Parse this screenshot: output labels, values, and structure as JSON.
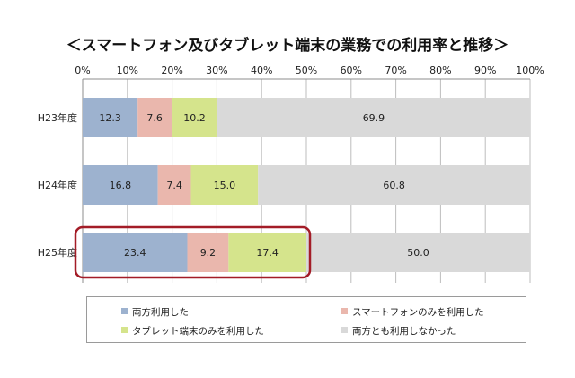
{
  "chart_data": {
    "type": "bar",
    "orientation": "horizontal",
    "stacked": true,
    "title": "＜スマートフォン及びタブレット端末の業務での利用率と推移＞",
    "categories": [
      "H23年度",
      "H24年度",
      "H25年度"
    ],
    "xlim": [
      0,
      100
    ],
    "x_ticks": [
      "0%",
      "10%",
      "20%",
      "30%",
      "40%",
      "50%",
      "60%",
      "70%",
      "80%",
      "90%",
      "100%"
    ],
    "grid": true,
    "legend_position": "bottom",
    "highlighted_category": "H25年度",
    "highlight_color": "#a31c27",
    "series": [
      {
        "name": "両方利用した",
        "color": "#9db2cf",
        "values": [
          12.3,
          16.8,
          23.4
        ]
      },
      {
        "name": "スマートフォンのみを利用した",
        "color": "#eab7ad",
        "values": [
          7.6,
          7.4,
          9.2
        ]
      },
      {
        "name": "タブレット端末のみを利用した",
        "color": "#d5e48c",
        "values": [
          10.2,
          15.0,
          17.4
        ]
      },
      {
        "name": "両方とも利用しなかった",
        "color": "#d9d9d9",
        "values": [
          69.9,
          60.8,
          50.0
        ]
      }
    ]
  }
}
